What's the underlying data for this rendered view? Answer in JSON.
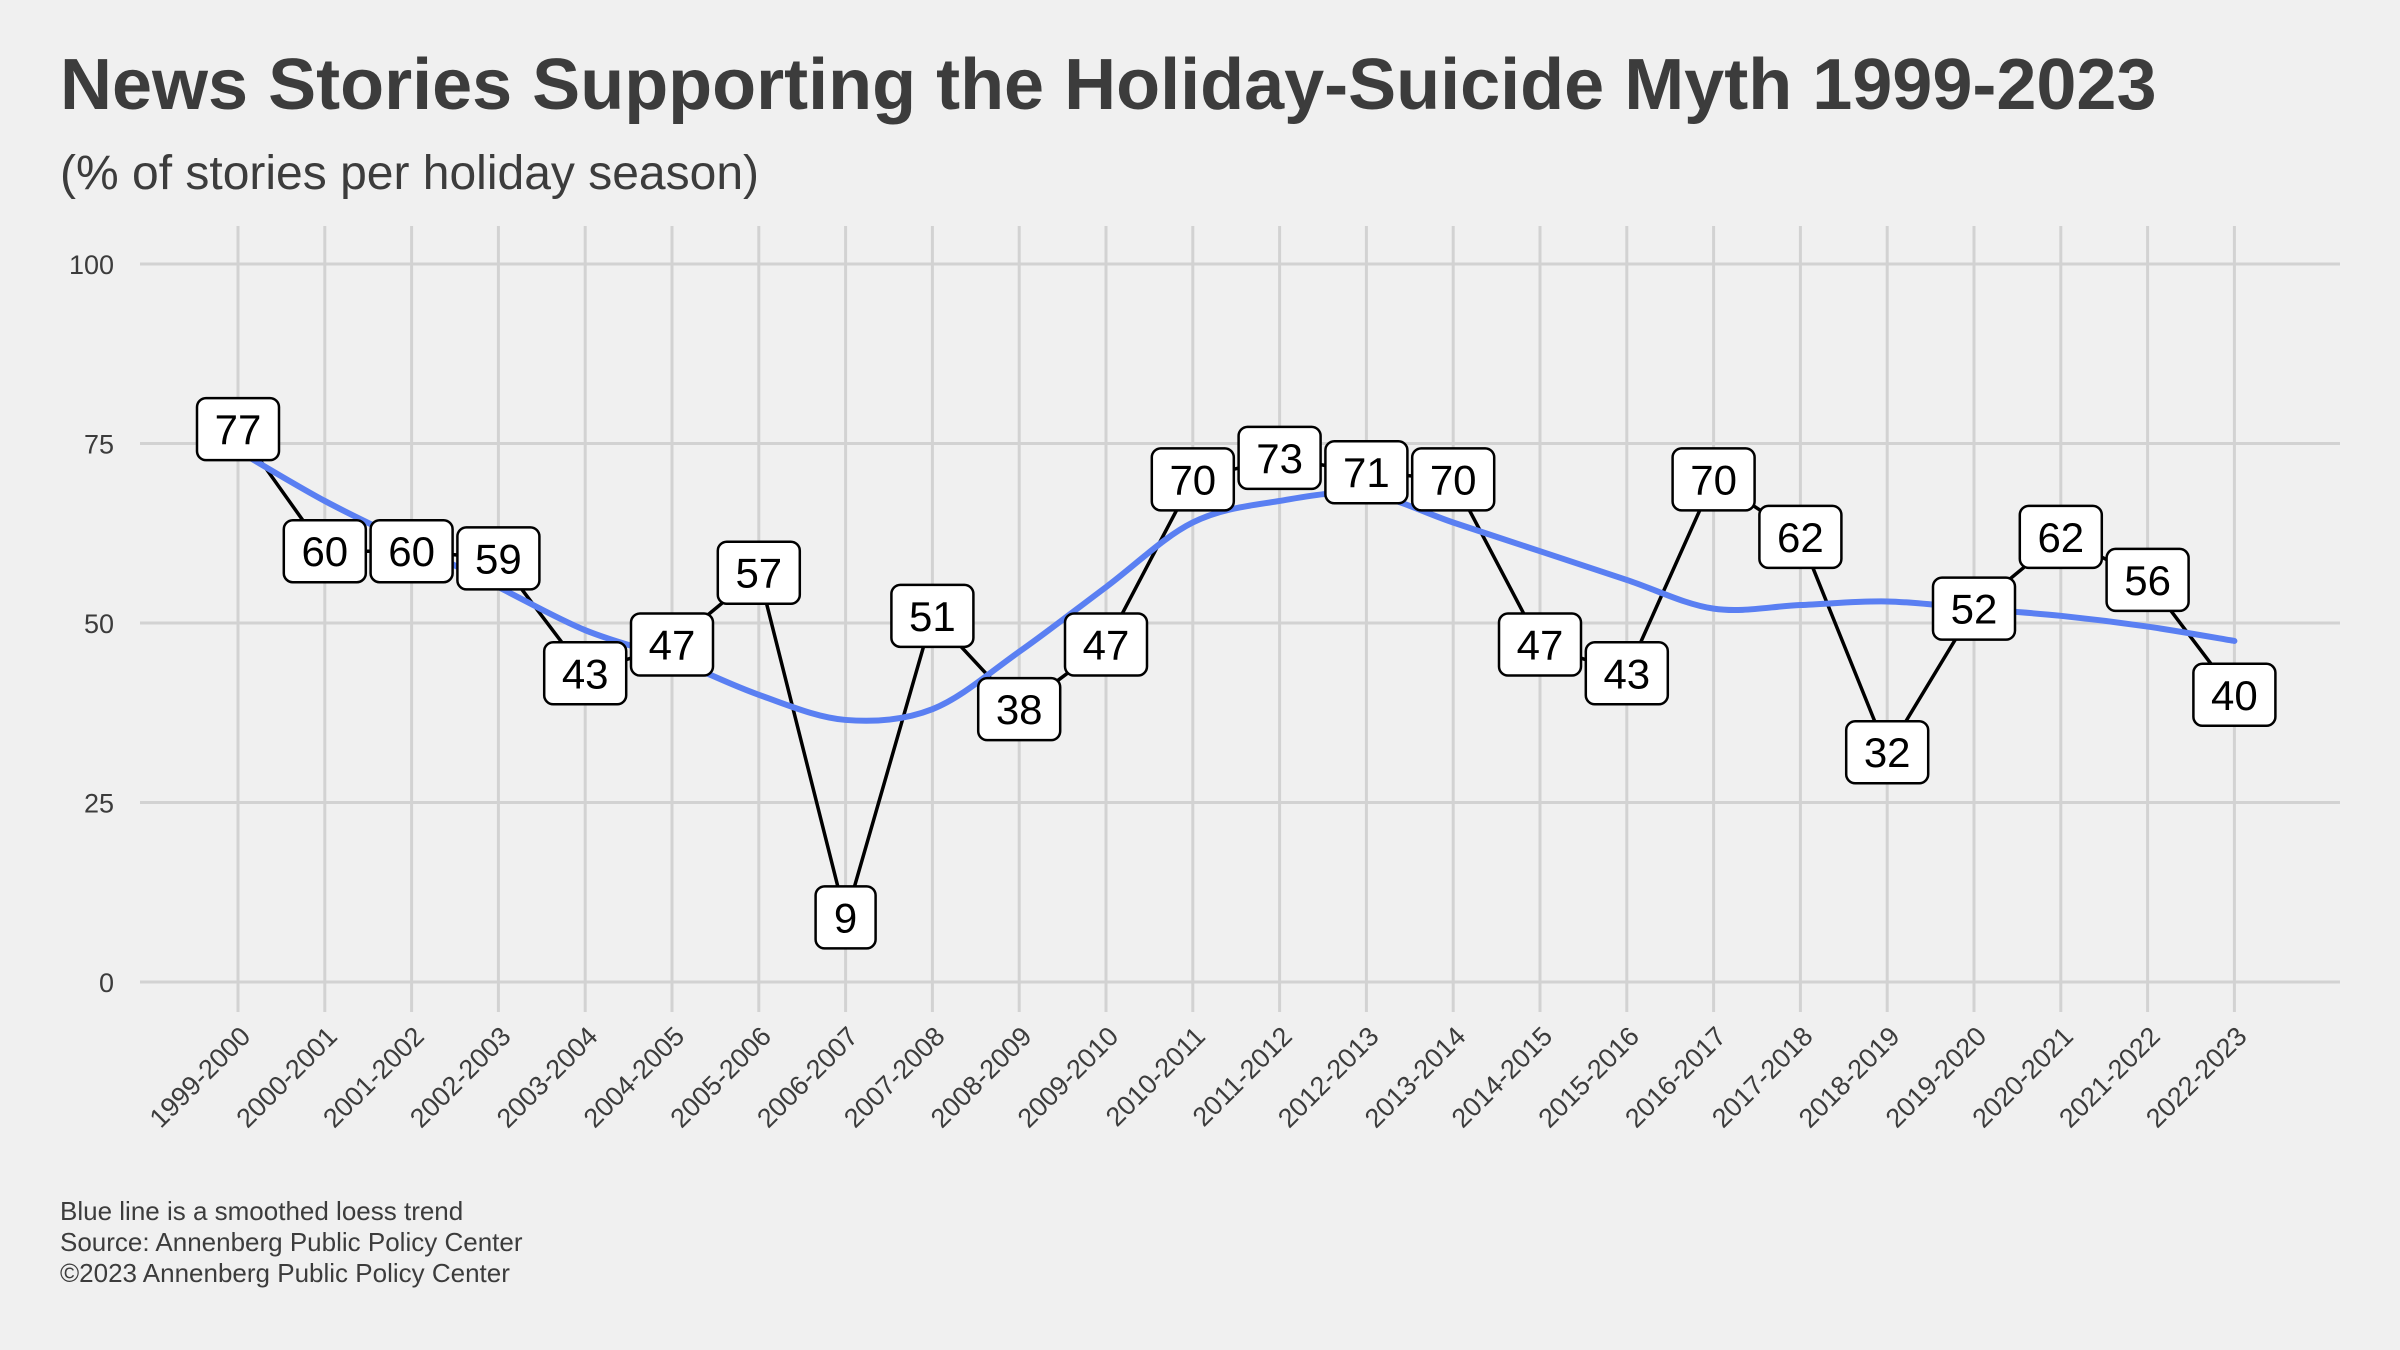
{
  "title": "News Stories Supporting the Holiday-Suicide Myth 1999-2023",
  "subtitle": "(% of stories per holiday season)",
  "footer": {
    "line1": "Blue line is a smoothed loess trend",
    "line2": "Source: Annenberg Public Policy Center",
    "line3": "©2023 Annenberg Public Policy Center"
  },
  "colors": {
    "background": "#f0f0f0",
    "grid": "#d2d2d2",
    "line": "#000000",
    "trend": "#5a7ff2",
    "text": "#3c3c3c"
  },
  "chart_data": {
    "type": "line",
    "title": "News Stories Supporting the Holiday-Suicide Myth 1999-2023",
    "subtitle": "(% of stories per holiday season)",
    "xlabel": "",
    "ylabel": "",
    "ylim": [
      0,
      100
    ],
    "yticks": [
      0,
      25,
      50,
      75,
      100
    ],
    "grid": true,
    "legend": "none",
    "categories": [
      "1999-2000",
      "2000-2001",
      "2001-2002",
      "2002-2003",
      "2003-2004",
      "2004-2005",
      "2005-2006",
      "2006-2007",
      "2007-2008",
      "2008-2009",
      "2009-2010",
      "2010-2011",
      "2011-2012",
      "2012-2013",
      "2013-2014",
      "2014-2015",
      "2015-2016",
      "2016-2017",
      "2017-2018",
      "2018-2019",
      "2019-2020",
      "2020-2021",
      "2021-2022",
      "2022-2023"
    ],
    "series": [
      {
        "values": [
          77,
          60,
          60,
          59,
          43,
          47,
          57,
          9,
          51,
          38,
          47,
          70,
          73,
          71,
          70,
          47,
          43,
          70,
          62,
          32,
          52,
          62,
          56,
          40
        ]
      },
      {
        "style": "smoothed trend",
        "values": [
          74,
          67,
          61,
          55,
          49,
          45,
          40,
          36.5,
          38,
          46,
          55,
          64,
          67,
          68,
          64,
          60,
          56,
          52,
          52.5,
          53,
          52,
          51,
          49.5,
          47.5
        ]
      }
    ]
  }
}
